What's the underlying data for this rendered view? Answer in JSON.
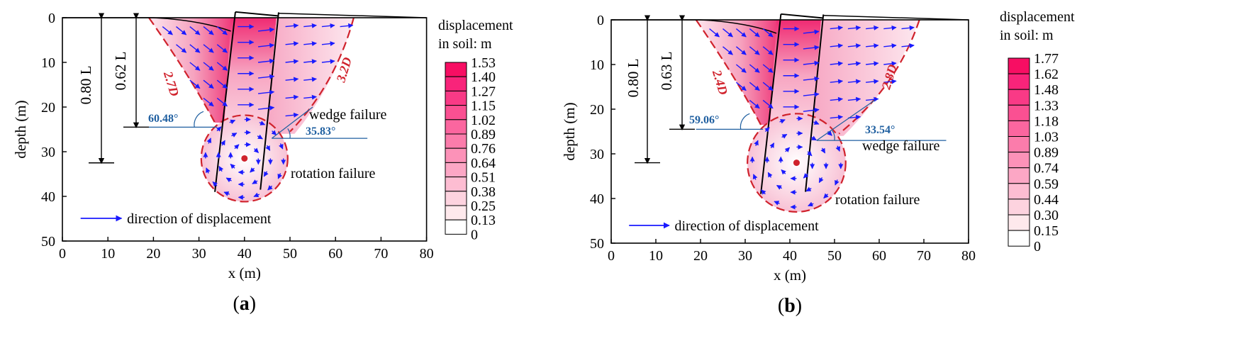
{
  "chart_data": [
    {
      "type": "contour",
      "panel_label": "(a)",
      "xlabel": "x (m)",
      "ylabel": "depth (m)",
      "xlim": [
        0,
        80
      ],
      "ylim": [
        50,
        0
      ],
      "x_ticks": [
        "0",
        "10",
        "20",
        "30",
        "40",
        "50",
        "60",
        "70",
        "80"
      ],
      "y_ticks": [
        "0",
        "10",
        "20",
        "30",
        "40",
        "50"
      ],
      "colorbar_title_1": "displacement",
      "colorbar_title_2": "in soil: m",
      "colorbar_levels": [
        "1.53",
        "1.40",
        "1.27",
        "1.15",
        "1.02",
        "0.89",
        "0.76",
        "0.64",
        "0.51",
        "0.38",
        "0.25",
        "0.13",
        "0"
      ],
      "annotations": {
        "depth_ratio_long": "0.80 L",
        "depth_ratio_short": "0.62 L",
        "left_wedge_width": "2.7D",
        "right_wedge_width": "3.2D",
        "angle_left": "60.48°",
        "angle_right": "35.83°",
        "wedge_label": "wedge failure",
        "rotation_label": "rotation failure",
        "legend_label": "direction of displacement"
      }
    },
    {
      "type": "contour",
      "panel_label": "(b)",
      "xlabel": "x (m)",
      "ylabel": "depth (m)",
      "xlim": [
        0,
        80
      ],
      "ylim": [
        50,
        0
      ],
      "x_ticks": [
        "0",
        "10",
        "20",
        "30",
        "40",
        "50",
        "60",
        "70",
        "80"
      ],
      "y_ticks": [
        "0",
        "10",
        "20",
        "30",
        "40",
        "50"
      ],
      "colorbar_title_1": "displacement",
      "colorbar_title_2": "in soil: m",
      "colorbar_levels": [
        "1.77",
        "1.62",
        "1.48",
        "1.33",
        "1.18",
        "1.03",
        "0.89",
        "0.74",
        "0.59",
        "0.44",
        "0.30",
        "0.15",
        "0"
      ],
      "annotations": {
        "depth_ratio_long": "0.80 L",
        "depth_ratio_short": "0.63 L",
        "left_wedge_width": "2.4D",
        "right_wedge_width": "2.8D",
        "angle_left": "59.06°",
        "angle_right": "33.54°",
        "wedge_label": "wedge failure",
        "rotation_label": "rotation failure",
        "legend_label": "direction of displacement"
      }
    }
  ],
  "colors": {
    "red": "#d0222c",
    "blue": "#1f5fa0",
    "arrow": "#1a1aff",
    "shade_dark": "#ef2f73",
    "shade_light": "#fde6ee"
  }
}
